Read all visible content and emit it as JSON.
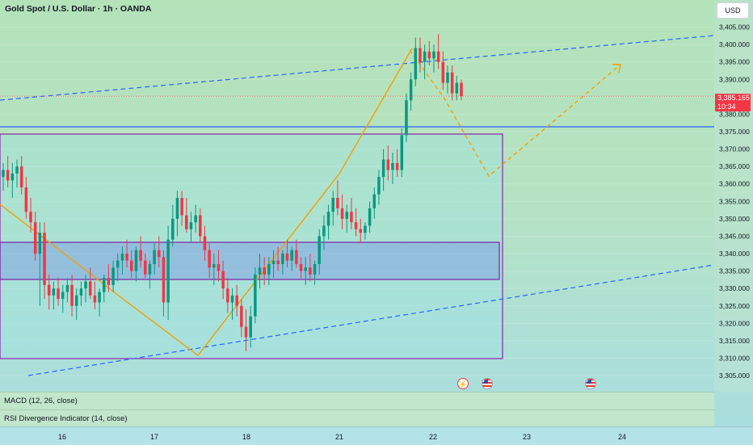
{
  "header": {
    "title": "Gold Spot / U.S. Dollar · 1h · OANDA",
    "currency": "USD"
  },
  "price_tag": {
    "price": "3,385.165",
    "countdown": "10:34",
    "color": "#f23645"
  },
  "indicators": [
    {
      "label": "MACD (12, 26, close)"
    },
    {
      "label": "RSI Divergence Indicator (14, close)"
    }
  ],
  "events": [
    {
      "icon": "flash-icon",
      "glyph": "⚡"
    },
    {
      "icon": "us-flag-icon",
      "glyph": ""
    },
    {
      "icon": "us-flag-icon",
      "glyph": ""
    }
  ],
  "chart_data": {
    "type": "candlestick",
    "title": "Gold Spot / U.S. Dollar · 1h · OANDA",
    "currency": "USD",
    "ylim": [
      3302,
      3410
    ],
    "y_ticks": [
      3305,
      3310,
      3315,
      3320,
      3325,
      3330,
      3335,
      3340,
      3345,
      3350,
      3355,
      3360,
      3365,
      3370,
      3375,
      3380,
      3385,
      3390,
      3395,
      3400,
      3405
    ],
    "x_ticks": [
      "16",
      "17",
      "18",
      "21",
      "22",
      "23",
      "24"
    ],
    "last_price": 3385.165,
    "colors": {
      "up": "#089981",
      "down": "#f23645"
    },
    "candles": [
      [
        3362,
        3366,
        3358,
        3364
      ],
      [
        3364,
        3368,
        3359,
        3361
      ],
      [
        3361,
        3366,
        3356,
        3363
      ],
      [
        3363,
        3367,
        3359,
        3365
      ],
      [
        3365,
        3368,
        3357,
        3359
      ],
      [
        3359,
        3362,
        3350,
        3352
      ],
      [
        3352,
        3356,
        3346,
        3349
      ],
      [
        3349,
        3352,
        3338,
        3340
      ],
      [
        3340,
        3349,
        3325,
        3346
      ],
      [
        3346,
        3349,
        3327,
        3331
      ],
      [
        3331,
        3334,
        3324,
        3328
      ],
      [
        3328,
        3332,
        3324,
        3330
      ],
      [
        3330,
        3333,
        3325,
        3327
      ],
      [
        3327,
        3331,
        3323,
        3329
      ],
      [
        3329,
        3333,
        3326,
        3331
      ],
      [
        3331,
        3334,
        3322,
        3325
      ],
      [
        3325,
        3330,
        3321,
        3328
      ],
      [
        3328,
        3332,
        3325,
        3330
      ],
      [
        3330,
        3334,
        3326,
        3332
      ],
      [
        3332,
        3336,
        3327,
        3328
      ],
      [
        3328,
        3332,
        3324,
        3326
      ],
      [
        3326,
        3330,
        3322,
        3329
      ],
      [
        3329,
        3334,
        3326,
        3333
      ],
      [
        3333,
        3337,
        3329,
        3331
      ],
      [
        3331,
        3338,
        3329,
        3336
      ],
      [
        3336,
        3340,
        3332,
        3338
      ],
      [
        3338,
        3342,
        3334,
        3340
      ],
      [
        3340,
        3344,
        3336,
        3338
      ],
      [
        3338,
        3341,
        3333,
        3335
      ],
      [
        3335,
        3342,
        3332,
        3341
      ],
      [
        3341,
        3345,
        3336,
        3338
      ],
      [
        3338,
        3340,
        3333,
        3334
      ],
      [
        3334,
        3338,
        3330,
        3337
      ],
      [
        3337,
        3343,
        3334,
        3341
      ],
      [
        3341,
        3345,
        3336,
        3339
      ],
      [
        3339,
        3341,
        3322,
        3326
      ],
      [
        3326,
        3348,
        3321,
        3344
      ],
      [
        3344,
        3354,
        3342,
        3350
      ],
      [
        3350,
        3358,
        3345,
        3356
      ],
      [
        3356,
        3358,
        3348,
        3351
      ],
      [
        3351,
        3356,
        3346,
        3347
      ],
      [
        3347,
        3352,
        3343,
        3349
      ],
      [
        3349,
        3354,
        3346,
        3351
      ],
      [
        3351,
        3353,
        3343,
        3345
      ],
      [
        3345,
        3348,
        3338,
        3341
      ],
      [
        3341,
        3343,
        3333,
        3336
      ],
      [
        3336,
        3340,
        3331,
        3337
      ],
      [
        3337,
        3341,
        3332,
        3335
      ],
      [
        3335,
        3338,
        3327,
        3330
      ],
      [
        3330,
        3333,
        3323,
        3326
      ],
      [
        3326,
        3330,
        3321,
        3328
      ],
      [
        3328,
        3331,
        3322,
        3325
      ],
      [
        3325,
        3327,
        3316,
        3319
      ],
      [
        3319,
        3324,
        3312,
        3316
      ],
      [
        3316,
        3325,
        3313,
        3322
      ],
      [
        3322,
        3336,
        3320,
        3334
      ],
      [
        3334,
        3340,
        3330,
        3336
      ],
      [
        3336,
        3339,
        3331,
        3334
      ],
      [
        3334,
        3339,
        3331,
        3337
      ],
      [
        3337,
        3341,
        3333,
        3338
      ],
      [
        3338,
        3342,
        3335,
        3337
      ],
      [
        3337,
        3341,
        3334,
        3340
      ],
      [
        3340,
        3344,
        3336,
        3338
      ],
      [
        3338,
        3342,
        3335,
        3341
      ],
      [
        3341,
        3344,
        3336,
        3337
      ],
      [
        3337,
        3339,
        3333,
        3335
      ],
      [
        3335,
        3339,
        3331,
        3336
      ],
      [
        3336,
        3340,
        3332,
        3334
      ],
      [
        3334,
        3338,
        3331,
        3337
      ],
      [
        3337,
        3347,
        3334,
        3345
      ],
      [
        3345,
        3351,
        3341,
        3348
      ],
      [
        3348,
        3354,
        3344,
        3352
      ],
      [
        3352,
        3358,
        3348,
        3356
      ],
      [
        3356,
        3361,
        3351,
        3353
      ],
      [
        3353,
        3357,
        3347,
        3350
      ],
      [
        3350,
        3354,
        3346,
        3352
      ],
      [
        3352,
        3356,
        3347,
        3349
      ],
      [
        3349,
        3353,
        3345,
        3347
      ],
      [
        3347,
        3350,
        3343,
        3346
      ],
      [
        3346,
        3349,
        3344,
        3348
      ],
      [
        3348,
        3355,
        3346,
        3353
      ],
      [
        3353,
        3359,
        3350,
        3357
      ],
      [
        3357,
        3364,
        3354,
        3362
      ],
      [
        3362,
        3370,
        3358,
        3367
      ],
      [
        3367,
        3371,
        3361,
        3364
      ],
      [
        3364,
        3369,
        3360,
        3366
      ],
      [
        3366,
        3370,
        3362,
        3364
      ],
      [
        3364,
        3376,
        3362,
        3374
      ],
      [
        3374,
        3386,
        3372,
        3384
      ],
      [
        3384,
        3392,
        3381,
        3390
      ],
      [
        3390,
        3402,
        3388,
        3399
      ],
      [
        3399,
        3402,
        3392,
        3395
      ],
      [
        3395,
        3400,
        3390,
        3398
      ],
      [
        3398,
        3401,
        3394,
        3396
      ],
      [
        3396,
        3400,
        3392,
        3398
      ],
      [
        3398,
        3403,
        3393,
        3395
      ],
      [
        3395,
        3398,
        3387,
        3389
      ],
      [
        3389,
        3394,
        3386,
        3392
      ],
      [
        3392,
        3394,
        3384,
        3386
      ],
      [
        3386,
        3391,
        3384,
        3389
      ],
      [
        3389,
        3390,
        3384,
        3385.165
      ]
    ]
  }
}
